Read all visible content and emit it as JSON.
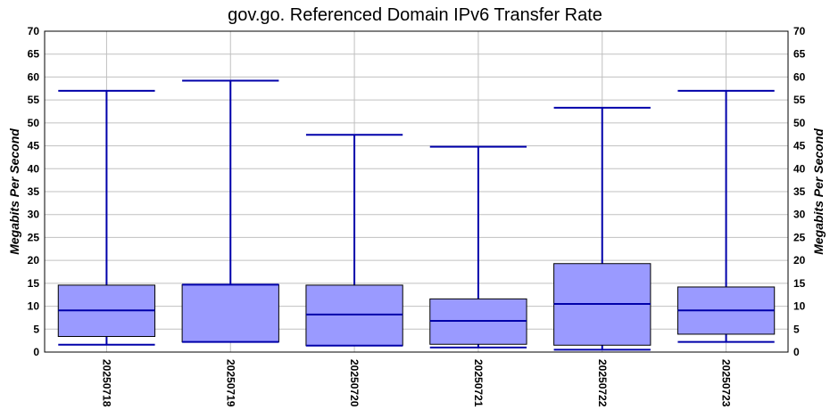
{
  "chart_data": {
    "type": "boxplot",
    "title": "gov.go. Referenced Domain IPv6 Transfer Rate",
    "ylabel_left": "Megabits Per Second",
    "ylabel_right": "Megabits Per Second",
    "ylim": [
      0,
      70
    ],
    "yticks": [
      0,
      5,
      10,
      15,
      20,
      25,
      30,
      35,
      40,
      45,
      50,
      55,
      60,
      65,
      70
    ],
    "grid": true,
    "categories": [
      "20250718",
      "20250719",
      "20250720",
      "20250721",
      "20250722",
      "20250723"
    ],
    "boxes": [
      {
        "category": "20250718",
        "whisker_low": 1.6,
        "q1": 3.4,
        "median": 9.1,
        "q3": 14.6,
        "whisker_high": 57.0
      },
      {
        "category": "20250719",
        "whisker_low": 2.2,
        "q1": 2.2,
        "median": 14.7,
        "q3": 14.7,
        "whisker_high": 59.2
      },
      {
        "category": "20250720",
        "whisker_low": 1.4,
        "q1": 1.4,
        "median": 8.2,
        "q3": 14.6,
        "whisker_high": 47.4
      },
      {
        "category": "20250721",
        "whisker_low": 1.0,
        "q1": 1.7,
        "median": 6.8,
        "q3": 11.6,
        "whisker_high": 44.8
      },
      {
        "category": "20250722",
        "whisker_low": 0.5,
        "q1": 1.5,
        "median": 10.5,
        "q3": 19.3,
        "whisker_high": 53.3
      },
      {
        "category": "20250723",
        "whisker_low": 2.2,
        "q1": 3.9,
        "median": 9.1,
        "q3": 14.2,
        "whisker_high": 57.0
      }
    ],
    "colors": {
      "box_fill": "#9a9aff",
      "box_stroke": "#000000",
      "whisker": "#0000aa",
      "median": "#0000aa",
      "grid": "#c0c0c0",
      "frame": "#000000"
    }
  }
}
